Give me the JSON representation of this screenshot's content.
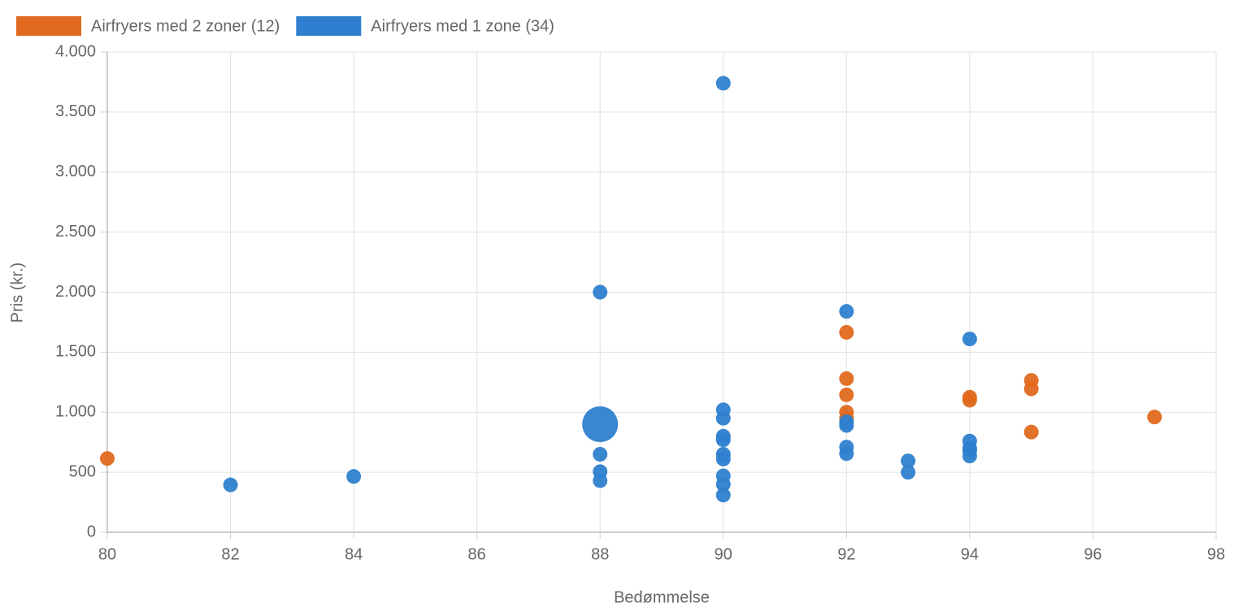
{
  "chart_data": {
    "type": "bubble",
    "x_label": "Bedømmelse",
    "y_label": "Pris (kr.)",
    "xlim": [
      80,
      98
    ],
    "xticks": [
      80,
      82,
      84,
      86,
      88,
      90,
      92,
      94,
      96,
      98
    ],
    "ylim": [
      0,
      4000
    ],
    "yticks": [
      0,
      500,
      {
        "value": 1000,
        "label": "1.000"
      },
      {
        "value": 1500,
        "label": "1.500"
      },
      {
        "value": 2000,
        "label": "2.000"
      },
      {
        "value": 2500,
        "label": "2.500"
      },
      {
        "value": 3000,
        "label": "3.000"
      },
      {
        "value": 3500,
        "label": "3.500"
      },
      {
        "value": 4000,
        "label": "4.000"
      }
    ],
    "grid": true,
    "legend": "top-left",
    "series": [
      {
        "name": "Airfryers med 2 zoner (12)",
        "color": "#e0691f",
        "x": [
          80,
          92,
          92,
          92,
          92,
          92,
          94,
          94,
          95,
          95,
          95,
          97
        ],
        "values": [
          615,
          1665,
          1280,
          1145,
          1000,
          950,
          1125,
          1100,
          1265,
          1195,
          835,
          960
        ],
        "sizes": [
          1,
          1,
          1,
          1,
          1,
          1,
          1,
          1,
          1,
          1,
          1,
          1
        ]
      },
      {
        "name": "Airfryers med 1 zone (34)",
        "color": "#2e7fcf",
        "x": [
          82,
          84,
          88,
          88,
          88,
          88,
          88,
          90,
          90,
          90,
          90,
          90,
          90,
          90,
          90,
          90,
          90,
          92,
          92,
          92,
          92,
          92,
          93,
          93,
          94,
          94,
          94,
          94,
          94
        ],
        "values": [
          395,
          465,
          2000,
          900,
          650,
          505,
          430,
          3740,
          1020,
          950,
          800,
          770,
          650,
          610,
          470,
          400,
          310,
          1840,
          920,
          890,
          710,
          655,
          595,
          500,
          1610,
          760,
          700,
          680,
          635
        ],
        "sizes": [
          1,
          1,
          1,
          6,
          1,
          1,
          1,
          1,
          1,
          1,
          1,
          1,
          1,
          1,
          1,
          1,
          1,
          1,
          1,
          1,
          1,
          1,
          1,
          1,
          1,
          1,
          1,
          1,
          1
        ]
      }
    ]
  }
}
